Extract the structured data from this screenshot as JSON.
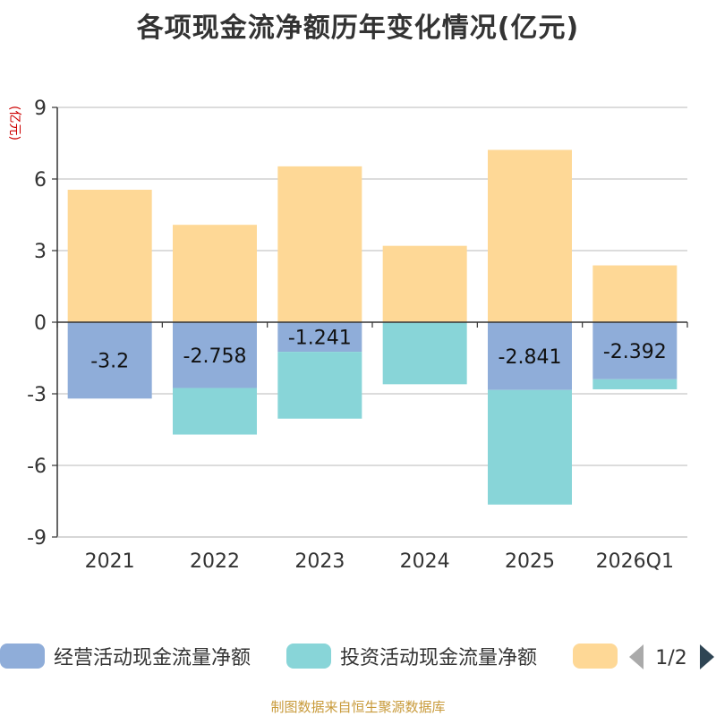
{
  "chart_data": {
    "type": "bar",
    "stacked": true,
    "title": "各项现金流净额历年变化情况(亿元)",
    "ylabel": "(亿元)",
    "ylim": [
      -9,
      9
    ],
    "yticks": [
      9,
      6,
      3,
      0,
      -3,
      -6,
      -9
    ],
    "categories": [
      "2021",
      "2022",
      "2023",
      "2024",
      "2025",
      "2026Q1"
    ],
    "series": [
      {
        "name": "经营活动现金流量净额",
        "color": "#8fadd9",
        "values": [
          -3.2,
          -2.758,
          -1.241,
          -0.02,
          -2.841,
          -2.392
        ],
        "labels": [
          "-3.2",
          "-2.758",
          "-1.241",
          "",
          "-2.841",
          "-2.392"
        ]
      },
      {
        "name": "投资活动现金流量净额",
        "color": "#88d5d8",
        "values": [
          0,
          -1.95,
          -2.8,
          -2.58,
          -4.8,
          -0.42
        ],
        "labels": [
          "",
          "",
          "",
          "",
          "",
          ""
        ]
      },
      {
        "name": "",
        "color": "#fed896",
        "values": [
          5.55,
          4.08,
          6.53,
          3.2,
          7.22,
          2.38
        ],
        "labels": [
          "",
          "",
          "",
          "",
          "",
          ""
        ]
      }
    ],
    "legend": {
      "position": "bottom",
      "items": [
        "经营活动现金流量净额",
        "投资活动现金流量净额",
        ""
      ],
      "page": "1/2"
    }
  },
  "source": "制图数据来自恒生聚源数据库"
}
